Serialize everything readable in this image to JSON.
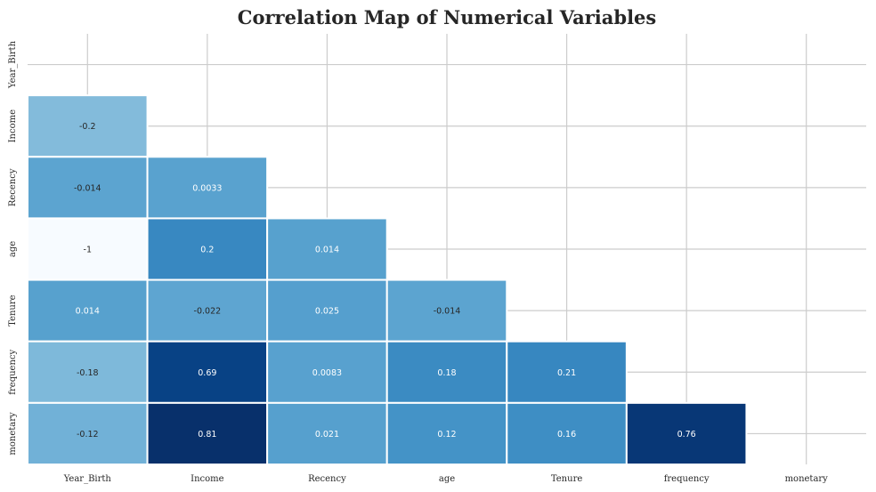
{
  "chart_data": {
    "type": "heatmap",
    "title": "Correlation Map of Numerical Variables",
    "variables": [
      "Year_Birth",
      "Income",
      "Recency",
      "age",
      "Tenure",
      "frequency",
      "monetary"
    ],
    "mask": "upper triangle including diagonal",
    "colormap": "Blues",
    "vmin": -1,
    "vmax": 0.81,
    "grid": true,
    "cells": [
      {
        "row": "Income",
        "col": "Year_Birth",
        "value": -0.2,
        "label": "-0.2"
      },
      {
        "row": "Recency",
        "col": "Year_Birth",
        "value": -0.014,
        "label": "-0.014"
      },
      {
        "row": "Recency",
        "col": "Income",
        "value": 0.0033,
        "label": "0.0033"
      },
      {
        "row": "age",
        "col": "Year_Birth",
        "value": -1,
        "label": "-1"
      },
      {
        "row": "age",
        "col": "Income",
        "value": 0.2,
        "label": "0.2"
      },
      {
        "row": "age",
        "col": "Recency",
        "value": 0.014,
        "label": "0.014"
      },
      {
        "row": "Tenure",
        "col": "Year_Birth",
        "value": 0.014,
        "label": "0.014"
      },
      {
        "row": "Tenure",
        "col": "Income",
        "value": -0.022,
        "label": "-0.022"
      },
      {
        "row": "Tenure",
        "col": "Recency",
        "value": 0.025,
        "label": "0.025"
      },
      {
        "row": "Tenure",
        "col": "age",
        "value": -0.014,
        "label": "-0.014"
      },
      {
        "row": "frequency",
        "col": "Year_Birth",
        "value": -0.18,
        "label": "-0.18"
      },
      {
        "row": "frequency",
        "col": "Income",
        "value": 0.69,
        "label": "0.69"
      },
      {
        "row": "frequency",
        "col": "Recency",
        "value": 0.0083,
        "label": "0.0083"
      },
      {
        "row": "frequency",
        "col": "age",
        "value": 0.18,
        "label": "0.18"
      },
      {
        "row": "frequency",
        "col": "Tenure",
        "value": 0.21,
        "label": "0.21"
      },
      {
        "row": "monetary",
        "col": "Year_Birth",
        "value": -0.12,
        "label": "-0.12"
      },
      {
        "row": "monetary",
        "col": "Income",
        "value": 0.81,
        "label": "0.81"
      },
      {
        "row": "monetary",
        "col": "Recency",
        "value": 0.021,
        "label": "0.021"
      },
      {
        "row": "monetary",
        "col": "age",
        "value": 0.12,
        "label": "0.12"
      },
      {
        "row": "monetary",
        "col": "Tenure",
        "value": 0.16,
        "label": "0.16"
      },
      {
        "row": "monetary",
        "col": "frequency",
        "value": 0.76,
        "label": "0.76"
      }
    ]
  },
  "colors": {
    "background": "#ffffff",
    "gridline": "#cccccc",
    "cell_border": "#ffffff",
    "text_dark": "#262626",
    "text_light": "#ffffff"
  }
}
